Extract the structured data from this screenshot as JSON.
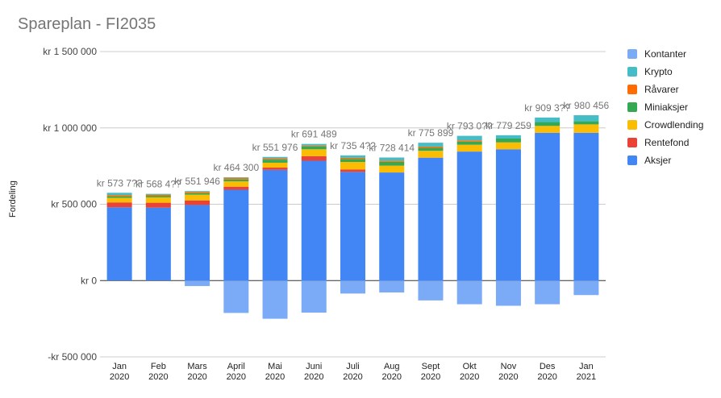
{
  "chart_data": {
    "type": "bar",
    "stacked": true,
    "title": "Spareplan - FI2035",
    "ylabel": "Fordeling",
    "xlabel": "",
    "ylim": [
      -500000,
      1500000
    ],
    "y_ticks": [
      {
        "value": 1500000,
        "label": "kr 1 500 000"
      },
      {
        "value": 1000000,
        "label": "kr 1 000 000"
      },
      {
        "value": 500000,
        "label": "kr 500 000"
      },
      {
        "value": 0,
        "label": "kr   0"
      },
      {
        "value": -500000,
        "label": "-kr 500 000"
      }
    ],
    "categories": [
      [
        "Jan",
        "2020"
      ],
      [
        "Feb",
        "2020"
      ],
      [
        "Mars",
        "2020"
      ],
      [
        "April",
        "2020"
      ],
      [
        "Mai",
        "2020"
      ],
      [
        "Juni",
        "2020"
      ],
      [
        "Juli",
        "2020"
      ],
      [
        "Aug",
        "2020"
      ],
      [
        "Sept",
        "2020"
      ],
      [
        "Okt",
        "2020"
      ],
      [
        "Nov",
        "2020"
      ],
      [
        "Des",
        "2020"
      ],
      [
        "Jan",
        "2021"
      ]
    ],
    "series": [
      {
        "name": "Aksjer",
        "color": "#4285f4",
        "values": [
          480000,
          478000,
          495000,
          595000,
          725000,
          785000,
          712000,
          708000,
          805000,
          845000,
          860000,
          968000,
          968000
        ]
      },
      {
        "name": "Rentefond",
        "color": "#ea4335",
        "values": [
          32000,
          32000,
          30000,
          20000,
          15000,
          30000,
          15000,
          0,
          0,
          0,
          0,
          0,
          0
        ]
      },
      {
        "name": "Crowdlending",
        "color": "#fbbc04",
        "values": [
          30000,
          35000,
          38000,
          35000,
          32000,
          45000,
          50000,
          45000,
          45000,
          45000,
          45000,
          45000,
          55000
        ]
      },
      {
        "name": "Miniaksjer",
        "color": "#34a853",
        "values": [
          10000,
          10000,
          10000,
          12000,
          20000,
          18000,
          20000,
          25000,
          20000,
          20000,
          25000,
          25000,
          20000
        ]
      },
      {
        "name": "Råvarer",
        "color": "#ff6d01",
        "values": [
          8000,
          8000,
          8000,
          10000,
          8000,
          5000,
          8000,
          8000,
          8000,
          8000,
          0,
          0,
          0
        ]
      },
      {
        "name": "Krypto",
        "color": "#46bdc6",
        "values": [
          15000,
          5000,
          5000,
          5000,
          10000,
          12000,
          15000,
          20000,
          25000,
          30000,
          22000,
          30000,
          40000
        ]
      },
      {
        "name": "Kontanter",
        "color": "#7baaf7",
        "values": [
          0,
          0,
          -36000,
          -212000,
          -250000,
          -210000,
          -85000,
          -78000,
          -130000,
          -155000,
          -165000,
          -155000,
          -95000
        ]
      }
    ],
    "totals": [
      {
        "label": "kr 573 7??",
        "value": 573700
      },
      {
        "label": "kr 568 4??",
        "value": 568400
      },
      {
        "label": "kr 551 946",
        "value": 551946
      },
      {
        "label": "kr 464 300",
        "value": 464300
      },
      {
        "label": "kr 551 976",
        "value": 551976
      },
      {
        "label": "kr 691 489",
        "value": 691489
      },
      {
        "label": "kr 735 4??",
        "value": 735400
      },
      {
        "label": "kr 728 414",
        "value": 728414
      },
      {
        "label": "kr 775 899",
        "value": 775899
      },
      {
        "label": "kr 793 0??",
        "value": 793000
      },
      {
        "label": "kr 779 259",
        "value": 779259
      },
      {
        "label": "kr 909 3??",
        "value": 909300
      },
      {
        "label": "kr 980 456",
        "value": 980456
      }
    ],
    "legend_order": [
      "Kontanter",
      "Krypto",
      "Råvarer",
      "Miniaksjer",
      "Crowdlending",
      "Rentefond",
      "Aksjer"
    ],
    "legend_position": "right",
    "grid": true
  }
}
